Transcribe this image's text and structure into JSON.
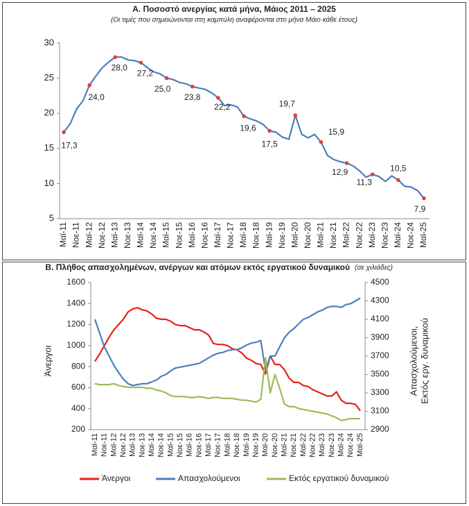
{
  "chart_data": [
    {
      "type": "line",
      "title": "Α. Ποσοστό ανεργίας κατά μήνα, Μάιος 2011 – 2025",
      "subtitle": "(Οι τιμές που σημειώνονται στη καμπύλη αναφέρονται στο μήνα Μάιο κάθε έτους)",
      "categories": [
        "Μαϊ-11",
        null,
        "Νοε-11",
        null,
        "Μαϊ-12",
        null,
        "Νοε-12",
        null,
        "Μαϊ-13",
        null,
        "Νοε-13",
        null,
        "Μαϊ-14",
        null,
        "Νοε-14",
        null,
        "Μαϊ-15",
        null,
        "Νοε-15",
        null,
        "Μαϊ-16",
        null,
        "Νοε-16",
        null,
        "Μαϊ-17",
        null,
        "Νοε-17",
        null,
        "Μαϊ-18",
        null,
        "Νοε-18",
        null,
        "Μαϊ-19",
        null,
        "Νοε-19",
        null,
        "Μαϊ-20",
        null,
        "Νοε-20",
        null,
        "Μαϊ-21",
        null,
        "Νοε-21",
        null,
        "Μαϊ-22",
        null,
        "Νοε-22",
        null,
        "Μαϊ-23",
        null,
        "Νοε-23",
        null,
        "Μαϊ-24",
        null,
        "Νοε-24",
        null,
        "Μαϊ-25"
      ],
      "values": [
        17.3,
        18.5,
        20.6,
        21.8,
        24.0,
        25.3,
        26.5,
        27.3,
        28.0,
        28.0,
        27.6,
        27.5,
        27.2,
        26.5,
        25.9,
        25.6,
        25.0,
        24.8,
        24.4,
        24.2,
        23.8,
        23.6,
        23.4,
        22.9,
        22.2,
        21.1,
        21.2,
        20.9,
        19.6,
        19.2,
        18.9,
        18.4,
        17.5,
        17.3,
        16.6,
        16.3,
        19.7,
        17.0,
        16.5,
        17.0,
        15.9,
        14.0,
        13.4,
        13.1,
        12.9,
        12.5,
        11.8,
        10.9,
        11.3,
        11.0,
        10.3,
        11.1,
        10.5,
        9.6,
        9.5,
        9.0,
        7.9
      ],
      "value_labels": [
        "17,3",
        null,
        null,
        null,
        "24,0",
        null,
        null,
        null,
        "28,0",
        null,
        null,
        null,
        "27,2",
        null,
        null,
        null,
        "25,0",
        null,
        null,
        null,
        "23,8",
        null,
        null,
        null,
        "22,2",
        null,
        null,
        null,
        "19,6",
        null,
        null,
        null,
        "17,5",
        null,
        null,
        null,
        "19,7",
        null,
        null,
        null,
        "15,9",
        null,
        null,
        null,
        "12,9",
        null,
        null,
        null,
        "11,3",
        null,
        null,
        null,
        "10,5",
        null,
        null,
        null,
        "7,9"
      ],
      "color": "#4a7ebb",
      "marker_color": "#e0413b",
      "ylim": [
        5,
        30
      ],
      "yticks": [
        5,
        10,
        15,
        20,
        25,
        30
      ],
      "grid": false
    },
    {
      "type": "line",
      "title": "Β. Πλήθος απασχολημένων, ανέργων και ατόμων εκτός εργατικού δυναμικού",
      "subtitle": "(σε χιλιάδες)",
      "categories": [
        "Μαϊ-11",
        null,
        "Νοε-11",
        null,
        "Μαϊ-12",
        null,
        "Νοε-12",
        null,
        "Μαϊ-13",
        null,
        "Νοε-13",
        null,
        "Μαϊ-14",
        null,
        "Νοε-14",
        null,
        "Μαϊ-15",
        null,
        "Νοε-15",
        null,
        "Μαϊ-16",
        null,
        "Νοε-16",
        null,
        "Μαϊ-17",
        null,
        "Νοε-17",
        null,
        "Μαϊ-18",
        null,
        "Νοε-18",
        null,
        "Μαϊ-19",
        null,
        "Νοε-19",
        null,
        "Μαϊ-20",
        null,
        "Νοε-20",
        null,
        "Μαϊ-21",
        null,
        "Νοε-21",
        null,
        "Μαϊ-22",
        null,
        "Νοε-22",
        null,
        "Μαϊ-23",
        null,
        "Νοε-23",
        null,
        "Μαϊ-24",
        null,
        "Νοε-24",
        null,
        "Μαϊ-25"
      ],
      "series": [
        {
          "name": "Άνεργοι",
          "color": "#e8201b",
          "values": [
            850,
            920,
            1000,
            1080,
            1150,
            1200,
            1250,
            1320,
            1350,
            1360,
            1340,
            1330,
            1300,
            1260,
            1250,
            1250,
            1230,
            1200,
            1190,
            1190,
            1170,
            1150,
            1150,
            1130,
            1100,
            1020,
            1010,
            1010,
            1000,
            970,
            960,
            930,
            880,
            860,
            830,
            820,
            730,
            900,
            820,
            820,
            770,
            690,
            650,
            650,
            620,
            610,
            580,
            560,
            540,
            520,
            520,
            560,
            480,
            450,
            450,
            440,
            380
          ]
        },
        {
          "name": "Απασχολούμενοι",
          "color": "#4a7ebb",
          "axis": "y2",
          "values": [
            4100,
            3950,
            3800,
            3700,
            3600,
            3520,
            3450,
            3400,
            3380,
            3390,
            3400,
            3400,
            3420,
            3440,
            3480,
            3500,
            3540,
            3570,
            3580,
            3590,
            3600,
            3610,
            3620,
            3650,
            3680,
            3710,
            3730,
            3740,
            3760,
            3770,
            3770,
            3790,
            3820,
            3840,
            3850,
            3870,
            3550,
            3700,
            3700,
            3800,
            3900,
            3960,
            4000,
            4050,
            4100,
            4120,
            4150,
            4180,
            4200,
            4230,
            4240,
            4240,
            4230,
            4260,
            4270,
            4300,
            4330
          ]
        },
        {
          "name": "Εκτός εργατικού δυναμικού",
          "color": "#9bbb59",
          "axis": "y2",
          "values": [
            3400,
            3390,
            3390,
            3390,
            3400,
            3380,
            3370,
            3360,
            3360,
            3360,
            3360,
            3350,
            3350,
            3330,
            3320,
            3300,
            3270,
            3260,
            3260,
            3260,
            3250,
            3250,
            3260,
            3250,
            3240,
            3250,
            3250,
            3240,
            3240,
            3240,
            3230,
            3220,
            3220,
            3210,
            3200,
            3230,
            3680,
            3300,
            3500,
            3350,
            3180,
            3150,
            3150,
            3130,
            3120,
            3110,
            3100,
            3090,
            3080,
            3070,
            3050,
            3030,
            3000,
            3010,
            3020,
            3020,
            3020
          ]
        }
      ],
      "ylabel": "Άνεργοι",
      "y2label": [
        "Απασχολούμενοι,",
        "Εκτός εργ. δυναμικού"
      ],
      "ylim": [
        200,
        1600
      ],
      "yticks": [
        200,
        400,
        600,
        800,
        1000,
        1200,
        1400,
        1600
      ],
      "y2lim": [
        2900,
        4500
      ],
      "y2ticks": [
        2900,
        3100,
        3300,
        3500,
        3700,
        3900,
        4100,
        4300,
        4500
      ],
      "legend": "bottom",
      "grid": false
    }
  ]
}
